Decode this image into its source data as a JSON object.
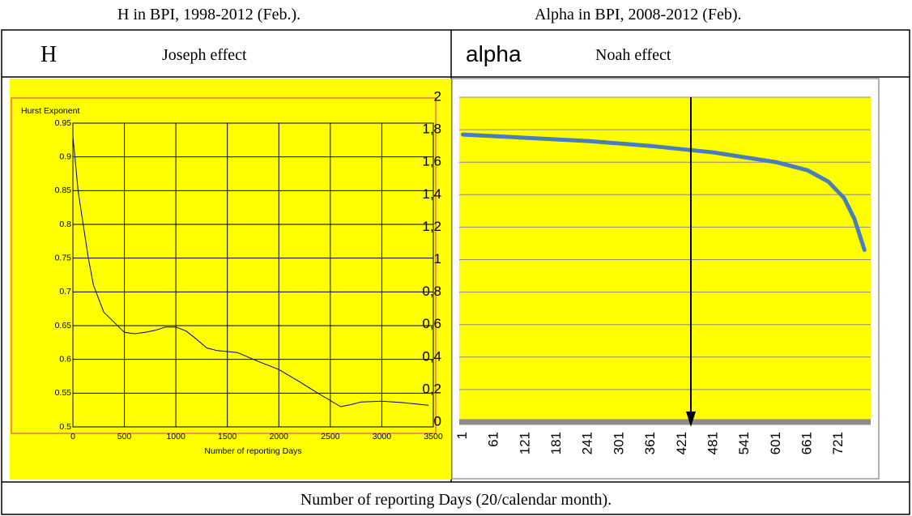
{
  "header": {
    "left_caption": "H in BPI, 1998-2012 (Feb.).",
    "right_caption": "Alpha in BPI, 2008-2012 (Feb)."
  },
  "table": {
    "left_symbol": "H",
    "left_effect": "Joseph effect",
    "right_symbol": "alpha",
    "right_effect": "Noah effect",
    "footer": "Number of reporting Days (20/calendar month)."
  },
  "chart_data": [
    {
      "type": "line",
      "ylabel": "Hurst Exponent",
      "xlabel": "Number of reporting Days",
      "x": [
        0,
        20,
        50,
        100,
        150,
        200,
        300,
        400,
        500,
        600,
        700,
        800,
        900,
        1000,
        1100,
        1200,
        1300,
        1400,
        1600,
        1800,
        2000,
        2200,
        2400,
        2600,
        2700,
        2800,
        3000,
        3200,
        3450
      ],
      "values": [
        0.93,
        0.9,
        0.85,
        0.8,
        0.75,
        0.71,
        0.67,
        0.655,
        0.64,
        0.638,
        0.64,
        0.643,
        0.648,
        0.648,
        0.642,
        0.63,
        0.617,
        0.613,
        0.61,
        0.597,
        0.585,
        0.567,
        0.548,
        0.53,
        0.533,
        0.537,
        0.538,
        0.536,
        0.532
      ],
      "color": "#00008b",
      "background": "#ffff00",
      "xlim": [
        0,
        3500
      ],
      "xticks": [
        0,
        500,
        1000,
        1500,
        2000,
        2500,
        3000,
        3500
      ],
      "ylim": [
        0.5,
        0.95
      ],
      "yticks": [
        0.5,
        0.55,
        0.6,
        0.65,
        0.7,
        0.75,
        0.8,
        0.85,
        0.9,
        0.95
      ],
      "grid": true
    },
    {
      "type": "line",
      "x": [
        1,
        121,
        241,
        361,
        481,
        601,
        661,
        701,
        731,
        751,
        770
      ],
      "values": [
        1.77,
        1.75,
        1.73,
        1.7,
        1.66,
        1.6,
        1.55,
        1.48,
        1.38,
        1.25,
        1.06
      ],
      "color": "#4a7ebb",
      "background": "#ffff00",
      "xlim": [
        -6,
        782
      ],
      "xticks": [
        1,
        61,
        121,
        181,
        241,
        301,
        361,
        421,
        481,
        541,
        601,
        661,
        721
      ],
      "ylim": [
        0,
        2
      ],
      "yticks": [
        0,
        {
          "value": 0.2,
          "label": "0,2"
        },
        {
          "value": 0.4,
          "label": "0,4"
        },
        {
          "value": 0.6,
          "label": "0,6"
        },
        {
          "value": 0.8,
          "label": "0,8"
        },
        1,
        {
          "value": 1.2,
          "label": "1,2"
        },
        {
          "value": 1.4,
          "label": "1,4"
        },
        {
          "value": 1.6,
          "label": "1,6"
        },
        {
          "value": 1.8,
          "label": "1,8"
        },
        2
      ],
      "grid": true
    }
  ]
}
